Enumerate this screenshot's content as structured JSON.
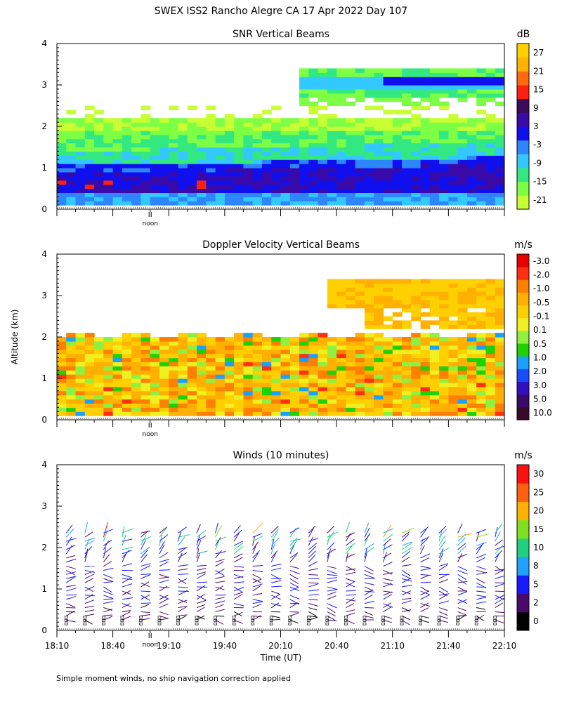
{
  "page_title": "SWEX ISS2 Rancho Alegre CA  17 Apr 2022 Day 107",
  "y_axis_label": "Altitude (km)",
  "x_axis_label": "Time (UT)",
  "footnote": "Simple moment winds, no ship navigation correction applied",
  "noon_label": "noon",
  "chart_data": [
    {
      "id": "snr",
      "type": "heatmap",
      "title": "SNR Vertical Beams",
      "unit_label": "dB",
      "ylim": [
        0,
        4
      ],
      "y_ticks": [
        "0",
        "1",
        "2",
        "3",
        "4"
      ],
      "x_range_utc": [
        "18:10",
        "22:10"
      ],
      "colorbar_labels": [
        "-21",
        "-15",
        "-9",
        "-3",
        "3",
        "9",
        "15",
        "21",
        "27"
      ],
      "colorbar_colors": [
        "#c8ff32",
        "#7cff44",
        "#33e880",
        "#33c8ff",
        "#2e86ff",
        "#1010ee",
        "#3a0aa8",
        "#3b0a5a",
        "#ff2010",
        "#ff6a10",
        "#ffb300",
        "#ffd000"
      ],
      "layers": [
        {
          "from_km": 0.15,
          "to_km": 0.9,
          "value_db": 5
        },
        {
          "from_km": 0.9,
          "to_km": 1.3,
          "value_db": 0
        },
        {
          "from_km": 1.3,
          "to_km": 1.7,
          "value_db": -6
        },
        {
          "from_km": 1.7,
          "to_km": 2.2,
          "value_db": -14
        },
        {
          "from_km": 2.6,
          "to_km": 3.4,
          "value_db": -10
        },
        {
          "from_km": 3.0,
          "to_km": 3.15,
          "value_db": 0
        }
      ]
    },
    {
      "id": "doppler",
      "type": "heatmap",
      "title": "Doppler Velocity Vertical Beams",
      "unit_label": "m/s",
      "ylim": [
        0,
        4
      ],
      "y_ticks": [
        "0",
        "1",
        "2",
        "3",
        "4"
      ],
      "x_range_utc": [
        "18:10",
        "22:10"
      ],
      "colorbar_labels": [
        "10.0",
        "5.0",
        "3.0",
        "2.0",
        "1.0",
        "0.5",
        "0.1",
        "-0.1",
        "-0.5",
        "-1.0",
        "-2.0",
        "-3.0"
      ],
      "colorbar_colors": [
        "#3a0a2a",
        "#3a0a6a",
        "#3010c0",
        "#1a4cff",
        "#1aa0ff",
        "#20d000",
        "#90f040",
        "#f0f020",
        "#ffd000",
        "#ffb000",
        "#ff8000",
        "#ff3010",
        "#e80000"
      ],
      "dominant_values_ms": [
        -0.5,
        -1.0
      ],
      "coverage_km": [
        0.1,
        3.5
      ]
    },
    {
      "id": "winds",
      "type": "scatter",
      "title": "Winds (10 minutes)",
      "unit_label": "m/s",
      "ylim": [
        0,
        4
      ],
      "y_ticks": [
        "0",
        "1",
        "2",
        "3",
        "4"
      ],
      "x_ticks": [
        "18:10",
        "18:40",
        "19:10",
        "19:40",
        "20:10",
        "20:40",
        "21:10",
        "21:40",
        "22:10"
      ],
      "profile_interval_min": 10,
      "n_profiles": 24,
      "colorbar_labels": [
        "0",
        "2",
        "5",
        "8",
        "10",
        "15",
        "20",
        "25",
        "30"
      ],
      "colorbar_colors": [
        "#000000",
        "#4a0a6a",
        "#1a1aff",
        "#20a0ff",
        "#20d080",
        "#80e020",
        "#ffb000",
        "#ff6010",
        "#ff1010"
      ]
    }
  ]
}
